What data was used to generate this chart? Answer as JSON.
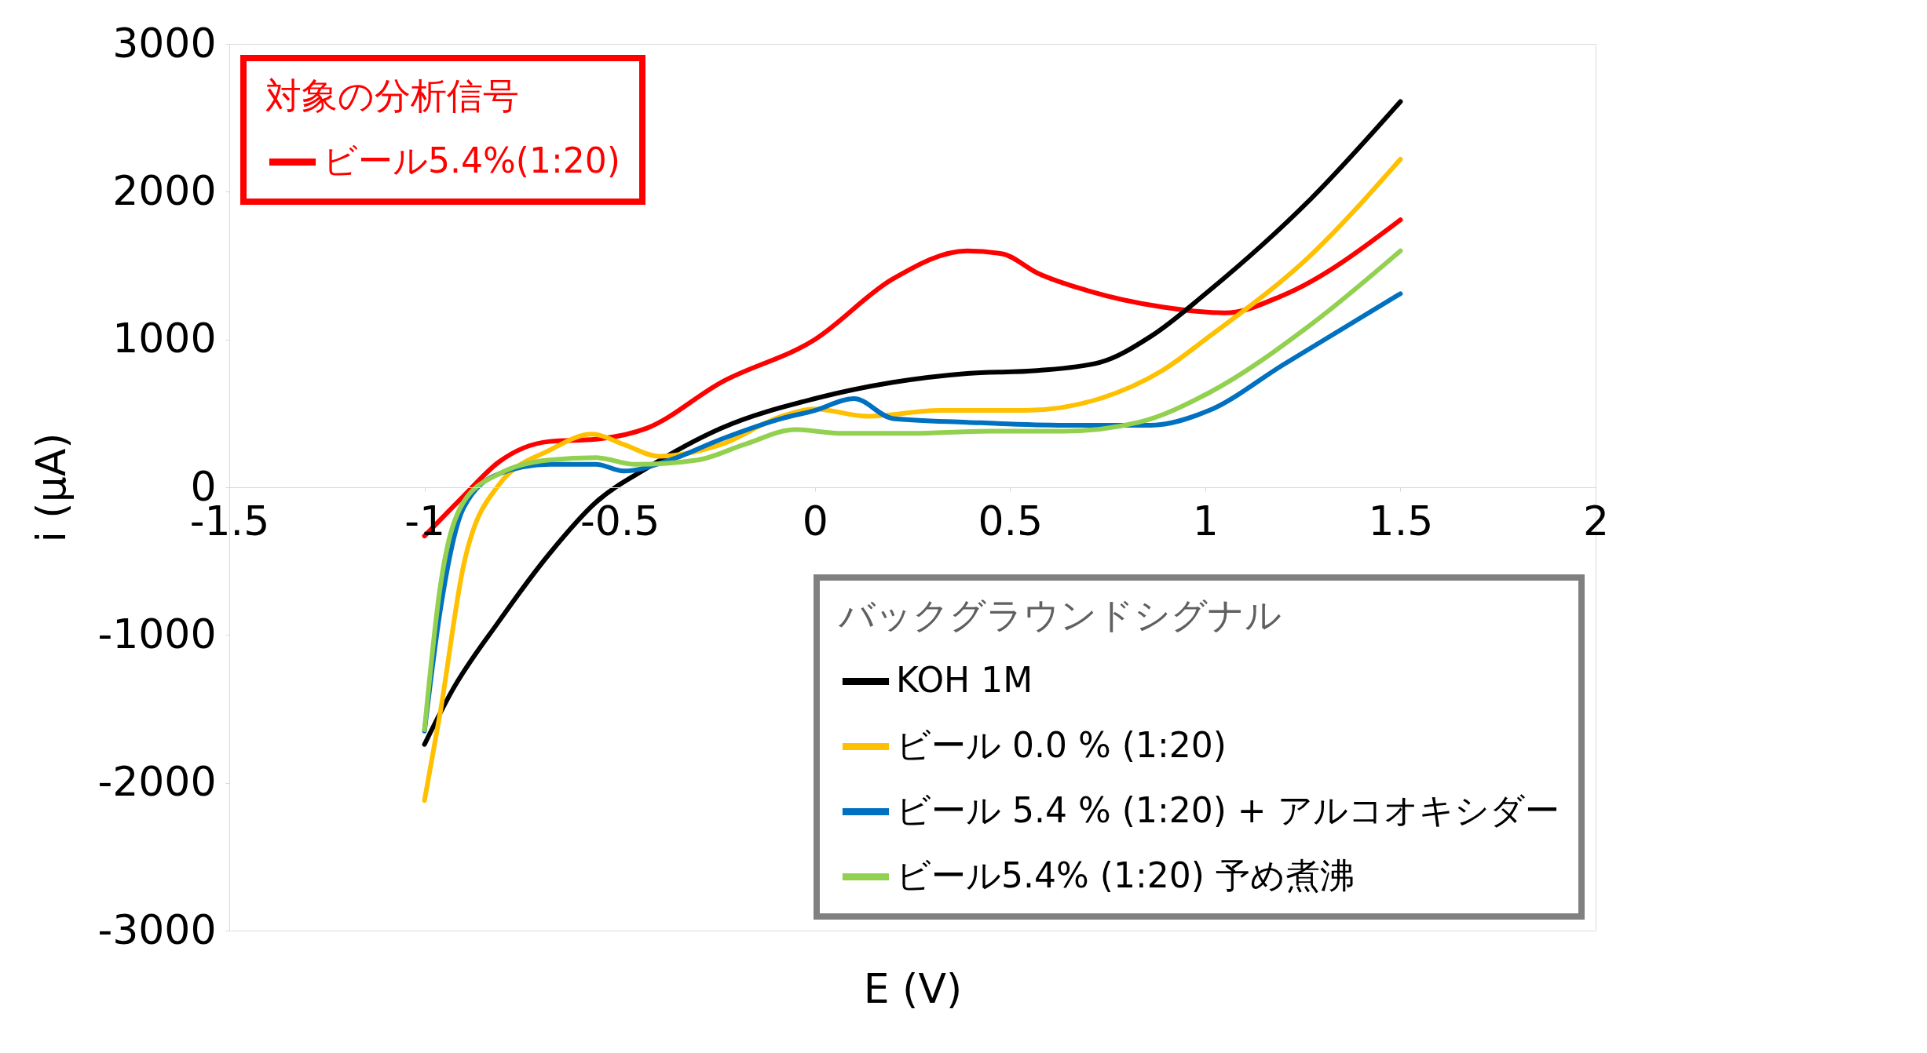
{
  "chart_data": {
    "type": "line",
    "xlabel": "E (V)",
    "ylabel": "i (μA)",
    "legend_title": [
      "対象の分析信号",
      "バックグラウンドシグナル"
    ],
    "legend": [
      "top left",
      "bottom right"
    ],
    "xlim": [
      -1.5,
      2
    ],
    "xticks": [
      -1.5,
      -1,
      -0.5,
      0,
      0.5,
      1,
      1.5,
      2
    ],
    "ylim": [
      -3000,
      3000
    ],
    "yticks": [
      -3000,
      -2000,
      -1000,
      0,
      1000,
      2000,
      3000
    ],
    "grid": false,
    "line_style": "solid",
    "marker": "none",
    "series": [
      {
        "name": "ビール5.4%(1:20)",
        "color": "#ff0000",
        "x": [
          -1,
          -0.9,
          -0.81,
          -0.68,
          -0.56,
          -0.43,
          -0.24,
          0,
          0.2,
          0.39,
          0.48,
          0.57,
          0.7,
          0.89,
          1.05,
          1.2,
          1.5
        ],
        "values": [
          -330,
          -60,
          170,
          310,
          325,
          400,
          710,
          1000,
          1410,
          1600,
          1580,
          1450,
          1330,
          1220,
          1180,
          1300,
          1810
        ]
      },
      {
        "name": "KOH 1M",
        "color": "#000000",
        "x": [
          -1,
          -0.93,
          -0.81,
          -0.68,
          -0.56,
          -0.43,
          -0.24,
          0,
          0.2,
          0.39,
          0.57,
          0.73,
          0.86,
          1.01,
          1.27,
          1.5
        ],
        "values": [
          -1740,
          -1380,
          -910,
          -450,
          -100,
          130,
          400,
          600,
          710,
          770,
          790,
          845,
          1020,
          1330,
          1950,
          2610
        ]
      },
      {
        "name": "ビール 0.0 % (1:20)",
        "color": "#ffc000",
        "x": [
          -1,
          -0.96,
          -0.9,
          -0.81,
          -0.68,
          -0.57,
          -0.49,
          -0.4,
          -0.24,
          -0.085,
          0,
          0.135,
          0.32,
          0.54,
          0.73,
          0.89,
          1.01,
          1.27,
          1.5
        ],
        "values": [
          -2120,
          -1530,
          -530,
          15,
          250,
          360,
          290,
          210,
          290,
          480,
          530,
          480,
          520,
          520,
          600,
          790,
          1020,
          1570,
          2220
        ]
      },
      {
        "name": "ビール 5.4 % (1:20) + アルコオキシダー",
        "color": "#0070c0",
        "x": [
          -1,
          -0.96,
          -0.9,
          -0.81,
          -0.68,
          -0.56,
          -0.49,
          -0.37,
          -0.24,
          -0.085,
          0,
          0.1,
          0.2,
          0.39,
          0.64,
          0.86,
          1.01,
          1.2,
          1.5
        ],
        "values": [
          -1650,
          -840,
          -140,
          90,
          155,
          155,
          110,
          185,
          325,
          465,
          520,
          600,
          465,
          440,
          420,
          420,
          520,
          830,
          1310
        ]
      },
      {
        "name": "ビール5.4% (1:20) 予め煮沸",
        "color": "#92d050",
        "x": [
          -1,
          -0.96,
          -0.9,
          -0.81,
          -0.68,
          -0.56,
          -0.46,
          -0.3,
          -0.18,
          -0.05,
          0.07,
          0.26,
          0.45,
          0.64,
          0.83,
          1.01,
          1.27,
          1.5
        ],
        "values": [
          -1640,
          -680,
          -100,
          90,
          185,
          200,
          155,
          185,
          290,
          390,
          365,
          365,
          380,
          380,
          440,
          640,
          1100,
          1600
        ]
      }
    ]
  }
}
